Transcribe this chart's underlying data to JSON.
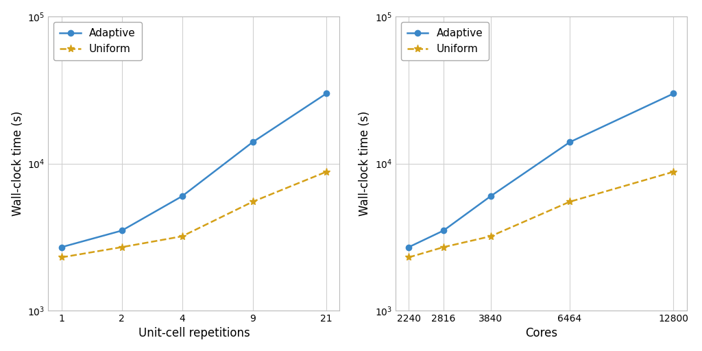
{
  "left": {
    "adaptive_x": [
      1,
      2,
      4,
      9,
      21
    ],
    "adaptive_y": [
      2700,
      3500,
      6000,
      14000,
      30000
    ],
    "uniform_x": [
      1,
      2,
      4,
      9,
      21
    ],
    "uniform_y": [
      2300,
      2700,
      3200,
      5500,
      8800
    ],
    "xlabel": "Unit-cell repetitions",
    "xticks": [
      1,
      2,
      4,
      9,
      21
    ]
  },
  "right": {
    "adaptive_x": [
      2240,
      2816,
      3840,
      6464,
      12800
    ],
    "adaptive_y": [
      2700,
      3500,
      6000,
      14000,
      30000
    ],
    "uniform_x": [
      2240,
      2816,
      3840,
      6464,
      12800
    ],
    "uniform_y": [
      2300,
      2700,
      3200,
      5500,
      8800
    ],
    "xlabel": "Cores",
    "xticks": [
      2240,
      2816,
      3840,
      6464,
      12800
    ]
  },
  "ylabel": "Wall-clock time (s)",
  "ylim": [
    1000,
    100000
  ],
  "yticks": [
    1000,
    10000,
    100000
  ],
  "adaptive_label": "Adaptive",
  "uniform_label": "Uniform",
  "adaptive_color": "#3a87c8",
  "uniform_color": "#d4a017",
  "background_color": "#ffffff",
  "grid_color": "#d0d0d0",
  "legend_fontsize": 11,
  "axis_label_fontsize": 12,
  "tick_label_fontsize": 10
}
